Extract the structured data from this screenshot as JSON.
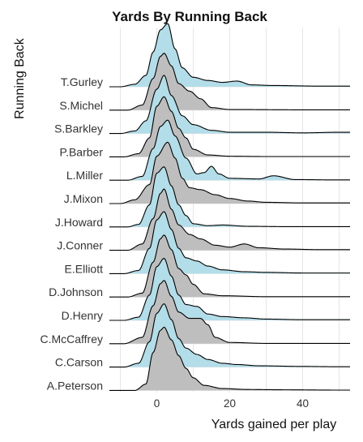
{
  "chart_data": {
    "type": "ridgeline",
    "title": "Yards By Running Back",
    "xlabel": "Yards gained per play",
    "ylabel": "Running Back",
    "xlim": [
      -13,
      53
    ],
    "xticks": [
      0,
      20,
      40
    ],
    "xtick_labels": [
      "0",
      "20",
      "40"
    ],
    "grid": true,
    "fill_colors": [
      "#b3dde8",
      "#bebebe"
    ],
    "line_color": "#000000",
    "categories": [
      "T.Gurley",
      "S.Michel",
      "S.Barkley",
      "P.Barber",
      "L.Miller",
      "J.Mixon",
      "J.Howard",
      "J.Conner",
      "E.Elliott",
      "D.Johnson",
      "D.Henry",
      "C.McCaffrey",
      "C.Carson",
      "A.Peterson"
    ],
    "series": [
      {
        "name": "T.Gurley",
        "fill": "#b3dde8",
        "peak": 3,
        "height": 1.0,
        "left": [
          [
            -10,
            0
          ],
          [
            -6,
            0.04
          ],
          [
            -3,
            0.18
          ],
          [
            -1,
            0.55
          ],
          [
            1,
            0.9
          ],
          [
            3,
            1.0
          ],
          [
            5,
            0.6
          ],
          [
            7,
            0.3
          ],
          [
            10,
            0.15
          ],
          [
            14,
            0.1
          ],
          [
            18,
            0.07
          ],
          [
            22,
            0.09
          ],
          [
            26,
            0.03
          ],
          [
            32,
            0.02
          ],
          [
            45,
            0.01
          ]
        ]
      },
      {
        "name": "S.Michel",
        "fill": "#bebebe",
        "peak": 2,
        "height": 0.9,
        "left": [
          [
            -8,
            0
          ],
          [
            -4,
            0.08
          ],
          [
            -1,
            0.5
          ],
          [
            1,
            0.85
          ],
          [
            2,
            0.9
          ],
          [
            4,
            0.7
          ],
          [
            6,
            0.42
          ],
          [
            9,
            0.3
          ],
          [
            12,
            0.18
          ],
          [
            15,
            0.04
          ],
          [
            20,
            0.01
          ],
          [
            40,
            0.005
          ]
        ]
      },
      {
        "name": "S.Barkley",
        "fill": "#b3dde8",
        "peak": 2,
        "height": 0.92,
        "left": [
          [
            -10,
            0
          ],
          [
            -6,
            0.04
          ],
          [
            -3,
            0.2
          ],
          [
            0,
            0.7
          ],
          [
            2,
            0.92
          ],
          [
            4,
            0.6
          ],
          [
            7,
            0.28
          ],
          [
            10,
            0.14
          ],
          [
            15,
            0.05
          ],
          [
            20,
            0.02
          ],
          [
            30,
            0.02
          ],
          [
            40,
            0.01
          ],
          [
            50,
            0.02
          ]
        ]
      },
      {
        "name": "P.Barber",
        "fill": "#bebebe",
        "peak": 2,
        "height": 0.95,
        "left": [
          [
            -9,
            0
          ],
          [
            -5,
            0.05
          ],
          [
            -2,
            0.3
          ],
          [
            0,
            0.8
          ],
          [
            2,
            0.95
          ],
          [
            4,
            0.72
          ],
          [
            6,
            0.45
          ],
          [
            8,
            0.3
          ],
          [
            10,
            0.12
          ],
          [
            14,
            0.03
          ],
          [
            20,
            0.01
          ],
          [
            30,
            0.005
          ]
        ]
      },
      {
        "name": "L.Miller",
        "fill": "#b3dde8",
        "peak": 3,
        "height": 0.95,
        "left": [
          [
            -8,
            0
          ],
          [
            -4,
            0.06
          ],
          [
            -1,
            0.5
          ],
          [
            1,
            0.85
          ],
          [
            3,
            0.95
          ],
          [
            5,
            0.7
          ],
          [
            8,
            0.35
          ],
          [
            11,
            0.1
          ],
          [
            13,
            0.12
          ],
          [
            15,
            0.22
          ],
          [
            17,
            0.1
          ],
          [
            20,
            0.03
          ],
          [
            28,
            0.02
          ],
          [
            32,
            0.07
          ],
          [
            38,
            0.01
          ],
          [
            48,
            0.005
          ]
        ]
      },
      {
        "name": "J.Mixon",
        "fill": "#bebebe",
        "peak": 3,
        "height": 0.97,
        "left": [
          [
            -10,
            0
          ],
          [
            -6,
            0.06
          ],
          [
            -2,
            0.3
          ],
          [
            0,
            0.75
          ],
          [
            3,
            0.97
          ],
          [
            5,
            0.72
          ],
          [
            7,
            0.4
          ],
          [
            9,
            0.25
          ],
          [
            12,
            0.22
          ],
          [
            16,
            0.14
          ],
          [
            20,
            0.08
          ],
          [
            25,
            0.04
          ],
          [
            30,
            0.02
          ],
          [
            40,
            0.01
          ]
        ]
      },
      {
        "name": "J.Howard",
        "fill": "#b3dde8",
        "peak": 2,
        "height": 0.95,
        "left": [
          [
            -8,
            0
          ],
          [
            -5,
            0.04
          ],
          [
            -2,
            0.35
          ],
          [
            0,
            0.85
          ],
          [
            2,
            0.95
          ],
          [
            4,
            0.65
          ],
          [
            6,
            0.35
          ],
          [
            8,
            0.18
          ],
          [
            10,
            0.05
          ],
          [
            14,
            0.02
          ],
          [
            18,
            0.03
          ],
          [
            25,
            0.01
          ],
          [
            35,
            0.005
          ]
        ]
      },
      {
        "name": "J.Conner",
        "fill": "#bebebe",
        "peak": 2,
        "height": 0.97,
        "left": [
          [
            -8,
            0
          ],
          [
            -4,
            0.1
          ],
          [
            -1,
            0.5
          ],
          [
            1,
            0.9
          ],
          [
            2,
            0.97
          ],
          [
            4,
            0.65
          ],
          [
            6,
            0.4
          ],
          [
            9,
            0.25
          ],
          [
            12,
            0.18
          ],
          [
            16,
            0.08
          ],
          [
            20,
            0.05
          ],
          [
            24,
            0.1
          ],
          [
            28,
            0.04
          ],
          [
            35,
            0.02
          ],
          [
            45,
            0.01
          ]
        ]
      },
      {
        "name": "E.Elliott",
        "fill": "#b3dde8",
        "peak": 2,
        "height": 0.98,
        "left": [
          [
            -9,
            0
          ],
          [
            -5,
            0.05
          ],
          [
            -2,
            0.4
          ],
          [
            0,
            0.85
          ],
          [
            2,
            0.98
          ],
          [
            4,
            0.7
          ],
          [
            6,
            0.4
          ],
          [
            8,
            0.25
          ],
          [
            11,
            0.2
          ],
          [
            14,
            0.12
          ],
          [
            18,
            0.06
          ],
          [
            24,
            0.03
          ],
          [
            30,
            0.02
          ],
          [
            40,
            0.01
          ]
        ]
      },
      {
        "name": "D.Johnson",
        "fill": "#bebebe",
        "peak": 2,
        "height": 0.98,
        "left": [
          [
            -8,
            0
          ],
          [
            -4,
            0.06
          ],
          [
            -1,
            0.55
          ],
          [
            1,
            0.92
          ],
          [
            2,
            0.98
          ],
          [
            4,
            0.75
          ],
          [
            6,
            0.45
          ],
          [
            8,
            0.35
          ],
          [
            10,
            0.2
          ],
          [
            13,
            0.05
          ],
          [
            18,
            0.02
          ],
          [
            30,
            0.005
          ]
        ]
      },
      {
        "name": "D.Henry",
        "fill": "#b3dde8",
        "peak": 2,
        "height": 0.98,
        "left": [
          [
            -9,
            0
          ],
          [
            -5,
            0.05
          ],
          [
            -2,
            0.4
          ],
          [
            0,
            0.85
          ],
          [
            2,
            0.98
          ],
          [
            4,
            0.7
          ],
          [
            6,
            0.4
          ],
          [
            8,
            0.25
          ],
          [
            11,
            0.22
          ],
          [
            14,
            0.1
          ],
          [
            18,
            0.06
          ],
          [
            24,
            0.04
          ],
          [
            30,
            0.02
          ],
          [
            40,
            0.01
          ],
          [
            50,
            0.01
          ]
        ]
      },
      {
        "name": "C.McCaffrey",
        "fill": "#bebebe",
        "peak": 2,
        "height": 1.0,
        "left": [
          [
            -9,
            0
          ],
          [
            -4,
            0.1
          ],
          [
            -1,
            0.6
          ],
          [
            1,
            0.95
          ],
          [
            2,
            1.0
          ],
          [
            4,
            0.75
          ],
          [
            6,
            0.5
          ],
          [
            9,
            0.4
          ],
          [
            12,
            0.4
          ],
          [
            14,
            0.3
          ],
          [
            16,
            0.1
          ],
          [
            20,
            0.02
          ],
          [
            30,
            0.005
          ]
        ]
      },
      {
        "name": "C.Carson",
        "fill": "#b3dde8",
        "peak": 2,
        "height": 1.0,
        "left": [
          [
            -9,
            0
          ],
          [
            -5,
            0.06
          ],
          [
            -2,
            0.4
          ],
          [
            0,
            0.85
          ],
          [
            2,
            1.0
          ],
          [
            4,
            0.75
          ],
          [
            6,
            0.45
          ],
          [
            8,
            0.3
          ],
          [
            11,
            0.2
          ],
          [
            14,
            0.12
          ],
          [
            18,
            0.06
          ],
          [
            22,
            0.04
          ],
          [
            28,
            0.02
          ],
          [
            40,
            0.01
          ],
          [
            50,
            0.005
          ]
        ]
      },
      {
        "name": "A.Peterson",
        "fill": "#bebebe",
        "peak": 2,
        "height": 1.0,
        "left": [
          [
            -6,
            0
          ],
          [
            -3,
            0.1
          ],
          [
            -1,
            0.6
          ],
          [
            1,
            0.95
          ],
          [
            2,
            1.0
          ],
          [
            4,
            0.8
          ],
          [
            6,
            0.55
          ],
          [
            8,
            0.35
          ],
          [
            10,
            0.2
          ],
          [
            13,
            0.08
          ],
          [
            18,
            0.03
          ],
          [
            25,
            0.015
          ],
          [
            35,
            0.01
          ],
          [
            50,
            0.005
          ]
        ]
      }
    ]
  }
}
